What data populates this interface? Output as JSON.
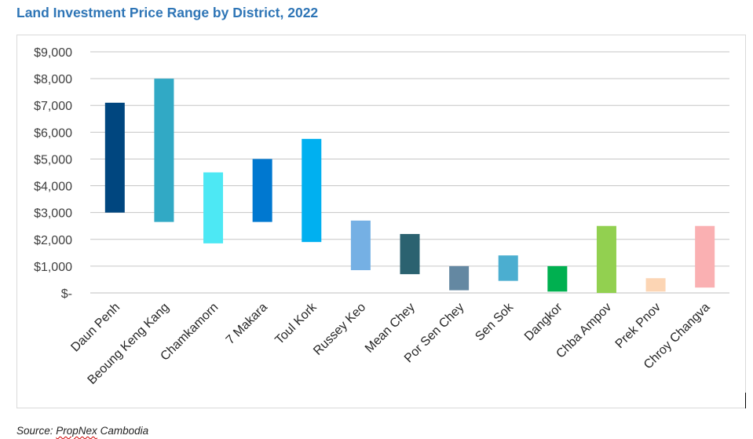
{
  "title": "Land Investment Price Range by District, 2022",
  "source": {
    "prefix": "Source: ",
    "brand": "PropNex",
    "suffix": " Cambodia"
  },
  "chart_data": {
    "type": "bar",
    "subtype": "floating-range",
    "title": "Land Investment Price Range by District, 2022",
    "xlabel": "",
    "ylabel": "",
    "ylim": [
      0,
      9000
    ],
    "yticks": [
      0,
      1000,
      2000,
      3000,
      4000,
      5000,
      6000,
      7000,
      8000,
      9000
    ],
    "ytick_labels": [
      "$-",
      "$1,000",
      "$2,000",
      "$3,000",
      "$4,000",
      "$5,000",
      "$6,000",
      "$7,000",
      "$8,000",
      "$9,000"
    ],
    "grid": true,
    "legend": "none",
    "categories": [
      "Daun Penh",
      "Beoung Keng Kang",
      "Chamkamorn",
      "7 Makara",
      "Toul Kork",
      "Russey Keo",
      "Mean Chey",
      "Por Sen Chey",
      "Sen Sok",
      "Dangkor",
      "Chba Ampov",
      "Prek Pnov",
      "Chroy Changva"
    ],
    "low": [
      3000,
      2650,
      1850,
      2650,
      1900,
      850,
      700,
      100,
      450,
      50,
      0,
      50,
      200
    ],
    "high": [
      7100,
      8000,
      4500,
      5000,
      5750,
      2700,
      2200,
      1000,
      1400,
      1000,
      2500,
      550,
      2500
    ],
    "colors": [
      "#00467f",
      "#31a9c5",
      "#4de8f4",
      "#0078d0",
      "#00b0f0",
      "#75b0e4",
      "#2b6270",
      "#6488a2",
      "#4baed0",
      "#00b050",
      "#92d050",
      "#fcd5b4",
      "#fab0b2"
    ]
  }
}
